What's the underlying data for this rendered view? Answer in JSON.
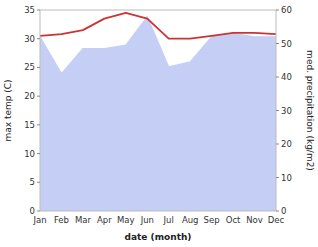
{
  "chart_data": {
    "type": "line",
    "categories": [
      "Jan",
      "Feb",
      "Mar",
      "Apr",
      "May",
      "Jun",
      "Jul",
      "Aug",
      "Sep",
      "Oct",
      "Nov",
      "Dec"
    ],
    "xlabel": "date (month)",
    "ylabel": "max temp (C)",
    "y2label": "med. precipitation (kg/m2)",
    "series": [
      {
        "type": "area",
        "axis": "y2",
        "color": "#c5cff5",
        "values": [
          52.0,
          41.0,
          48.5,
          48.5,
          49.5,
          58.0,
          43.0,
          44.5,
          52.0,
          53.0,
          52.0,
          52.0
        ]
      },
      {
        "type": "line",
        "color": "#cc3333",
        "values": [
          30.5,
          30.8,
          31.5,
          33.5,
          34.5,
          33.5,
          30.0,
          30.0,
          30.5,
          31.0,
          31.0,
          30.8
        ]
      }
    ],
    "ylim": [
      0,
      35
    ],
    "yticks": [
      0,
      5,
      10,
      15,
      20,
      25,
      30,
      35
    ],
    "y2lim": [
      0,
      60
    ],
    "y2ticks": [
      0,
      10,
      20,
      30,
      40,
      50,
      60
    ],
    "grid": false
  }
}
